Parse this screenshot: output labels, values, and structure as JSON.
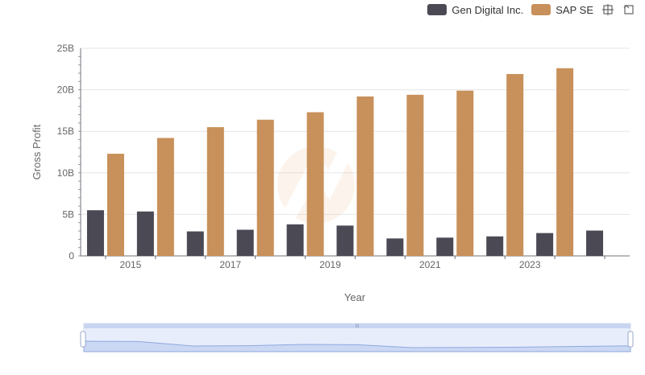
{
  "chart_data": {
    "type": "bar",
    "title": "",
    "xlabel": "Year",
    "ylabel": "Gross Profit",
    "x": [
      2014,
      2015,
      2016,
      2017,
      2018,
      2019,
      2020,
      2021,
      2022,
      2023,
      2024
    ],
    "x_tick_labels": [
      "2015",
      "2017",
      "2019",
      "2021",
      "2023"
    ],
    "y_tick_labels": [
      "0",
      "5B",
      "10B",
      "15B",
      "20B",
      "25B"
    ],
    "ylim": [
      0,
      25000000000
    ],
    "grid": true,
    "legend_position": "top-right",
    "series": [
      {
        "name": "Gen Digital Inc.",
        "color": "#4a4954",
        "values": [
          5500000000,
          5350000000,
          2950000000,
          3150000000,
          3800000000,
          3650000000,
          2100000000,
          2200000000,
          2350000000,
          2750000000,
          3050000000
        ]
      },
      {
        "name": "SAP SE",
        "color": "#c8905a",
        "values": [
          12300000000,
          14200000000,
          15500000000,
          16400000000,
          17300000000,
          19200000000,
          19400000000,
          19900000000,
          21900000000,
          22600000000,
          null
        ]
      }
    ]
  }
}
